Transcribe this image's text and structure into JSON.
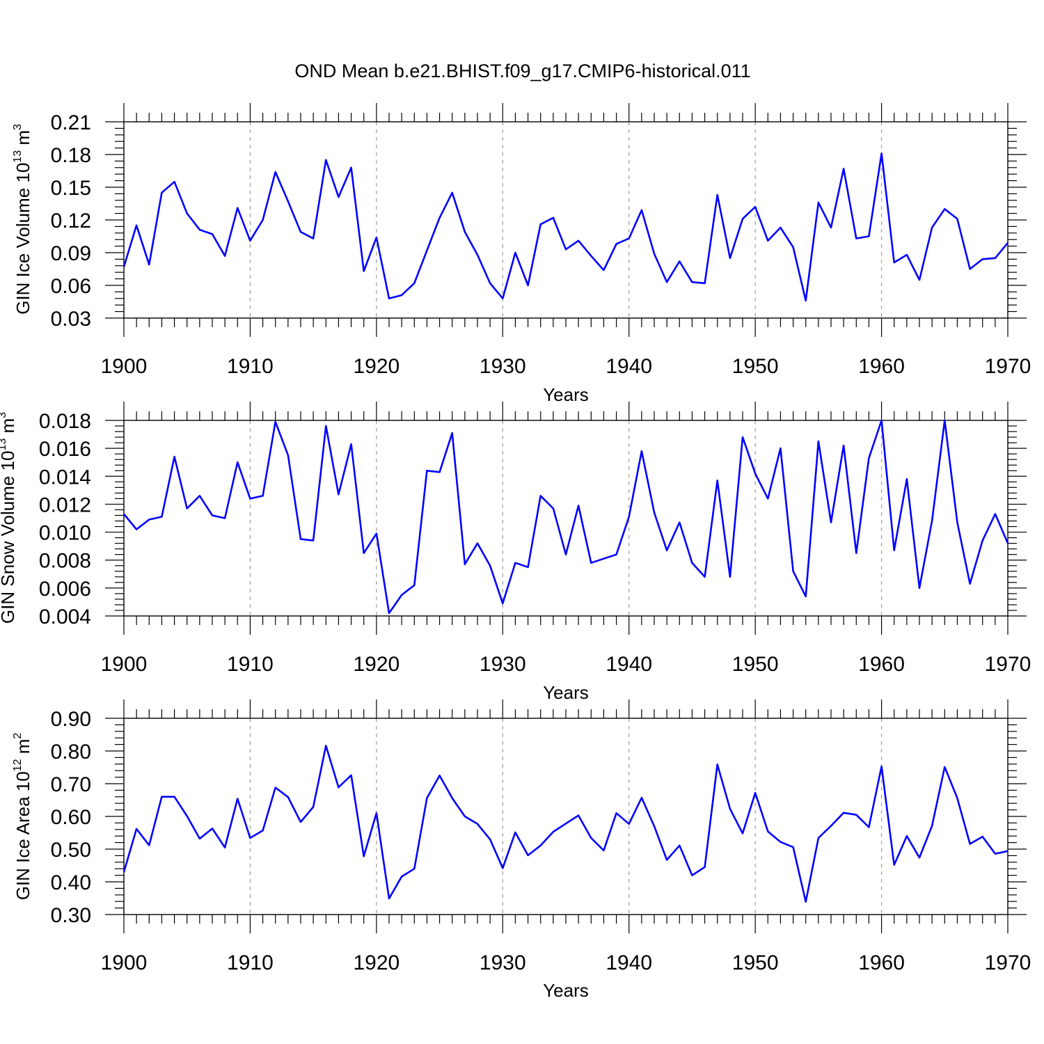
{
  "title": "OND Mean b.e21.BHIST.f09_g17.CMIP6-historical.011",
  "colors": {
    "line": "#0000ff",
    "axis": "#000000",
    "grid": "#999999"
  },
  "chart_data": [
    {
      "type": "line",
      "ylabel_main": "GIN Ice Volume 10",
      "ylabel_exp": "13",
      "ylabel_unit": " m",
      "ylabel_unit_exp": "3",
      "xlabel": "Years",
      "xlim": [
        1900,
        1970
      ],
      "ylim": [
        0.03,
        0.21
      ],
      "yticks": [
        0.03,
        0.06,
        0.09,
        0.12,
        0.15,
        0.18,
        0.21
      ],
      "yticklabels": [
        "0.03",
        "0.06",
        "0.09",
        "0.12",
        "0.15",
        "0.18",
        "0.21"
      ],
      "xticks": [
        1900,
        1910,
        1920,
        1930,
        1940,
        1950,
        1960,
        1970
      ],
      "xticklabels": [
        "1900",
        "1910",
        "1920",
        "1930",
        "1940",
        "1950",
        "1960",
        "1970"
      ],
      "x_start": 1900,
      "values": [
        0.077,
        0.115,
        0.079,
        0.145,
        0.155,
        0.126,
        0.111,
        0.107,
        0.087,
        0.131,
        0.101,
        0.12,
        0.164,
        0.137,
        0.109,
        0.103,
        0.175,
        0.141,
        0.168,
        0.073,
        0.104,
        0.048,
        0.051,
        0.062,
        0.092,
        0.122,
        0.145,
        0.109,
        0.088,
        0.062,
        0.048,
        0.09,
        0.06,
        0.116,
        0.122,
        0.093,
        0.101,
        0.087,
        0.074,
        0.098,
        0.103,
        0.129,
        0.089,
        0.063,
        0.082,
        0.063,
        0.062,
        0.143,
        0.085,
        0.121,
        0.132,
        0.101,
        0.113,
        0.095,
        0.046,
        0.136,
        0.113,
        0.167,
        0.103,
        0.105,
        0.181,
        0.081,
        0.088,
        0.065,
        0.113,
        0.13,
        0.121,
        0.075,
        0.084,
        0.085,
        0.099
      ]
    },
    {
      "type": "line",
      "ylabel_main": "GIN Snow Volume 10",
      "ylabel_exp": "13",
      "ylabel_unit": " m",
      "ylabel_unit_exp": "3",
      "xlabel": "Years",
      "xlim": [
        1900,
        1970
      ],
      "ylim": [
        0.004,
        0.018
      ],
      "yticks": [
        0.004,
        0.006,
        0.008,
        0.01,
        0.012,
        0.014,
        0.016,
        0.018
      ],
      "yticklabels": [
        "0.004",
        "0.006",
        "0.008",
        "0.010",
        "0.012",
        "0.014",
        "0.016",
        "0.018"
      ],
      "xticks": [
        1900,
        1910,
        1920,
        1930,
        1940,
        1950,
        1960,
        1970
      ],
      "xticklabels": [
        "1900",
        "1910",
        "1920",
        "1930",
        "1940",
        "1950",
        "1960",
        "1970"
      ],
      "x_start": 1900,
      "values": [
        0.0113,
        0.0102,
        0.0109,
        0.0111,
        0.0154,
        0.0117,
        0.0126,
        0.0112,
        0.011,
        0.015,
        0.0124,
        0.0126,
        0.0179,
        0.0155,
        0.0095,
        0.0094,
        0.0176,
        0.0127,
        0.0163,
        0.0085,
        0.0099,
        0.0042,
        0.0055,
        0.0062,
        0.0144,
        0.0143,
        0.0171,
        0.0077,
        0.0092,
        0.0076,
        0.0049,
        0.0078,
        0.0075,
        0.0126,
        0.0117,
        0.0084,
        0.0119,
        0.0078,
        0.0081,
        0.0084,
        0.0111,
        0.0158,
        0.0114,
        0.0087,
        0.0107,
        0.0078,
        0.0068,
        0.0137,
        0.0068,
        0.0168,
        0.0142,
        0.0124,
        0.016,
        0.0072,
        0.0054,
        0.0165,
        0.0107,
        0.0162,
        0.0085,
        0.0153,
        0.018,
        0.0087,
        0.0138,
        0.006,
        0.0108,
        0.018,
        0.0107,
        0.0063,
        0.0094,
        0.0113,
        0.0092
      ]
    },
    {
      "type": "line",
      "ylabel_main": "GIN Ice Area 10",
      "ylabel_exp": "12",
      "ylabel_unit": " m",
      "ylabel_unit_exp": "2",
      "xlabel": "Years",
      "xlim": [
        1900,
        1970
      ],
      "ylim": [
        0.3,
        0.9
      ],
      "yticks": [
        0.3,
        0.4,
        0.5,
        0.6,
        0.7,
        0.8,
        0.9
      ],
      "yticklabels": [
        "0.30",
        "0.40",
        "0.50",
        "0.60",
        "0.70",
        "0.80",
        "0.90"
      ],
      "xticks": [
        1900,
        1910,
        1920,
        1930,
        1940,
        1950,
        1960,
        1970
      ],
      "xticklabels": [
        "1900",
        "1910",
        "1920",
        "1930",
        "1940",
        "1950",
        "1960",
        "1970"
      ],
      "x_start": 1900,
      "values": [
        0.43,
        0.562,
        0.512,
        0.66,
        0.66,
        0.601,
        0.532,
        0.563,
        0.505,
        0.654,
        0.534,
        0.557,
        0.688,
        0.659,
        0.583,
        0.629,
        0.816,
        0.689,
        0.726,
        0.478,
        0.61,
        0.349,
        0.416,
        0.44,
        0.656,
        0.725,
        0.656,
        0.6,
        0.577,
        0.53,
        0.442,
        0.551,
        0.481,
        0.511,
        0.553,
        0.578,
        0.603,
        0.534,
        0.496,
        0.61,
        0.577,
        0.657,
        0.57,
        0.467,
        0.511,
        0.42,
        0.445,
        0.759,
        0.623,
        0.548,
        0.672,
        0.554,
        0.522,
        0.506,
        0.339,
        0.534,
        0.571,
        0.611,
        0.605,
        0.567,
        0.753,
        0.452,
        0.54,
        0.474,
        0.571,
        0.751,
        0.656,
        0.516,
        0.538,
        0.486,
        0.494
      ]
    }
  ]
}
